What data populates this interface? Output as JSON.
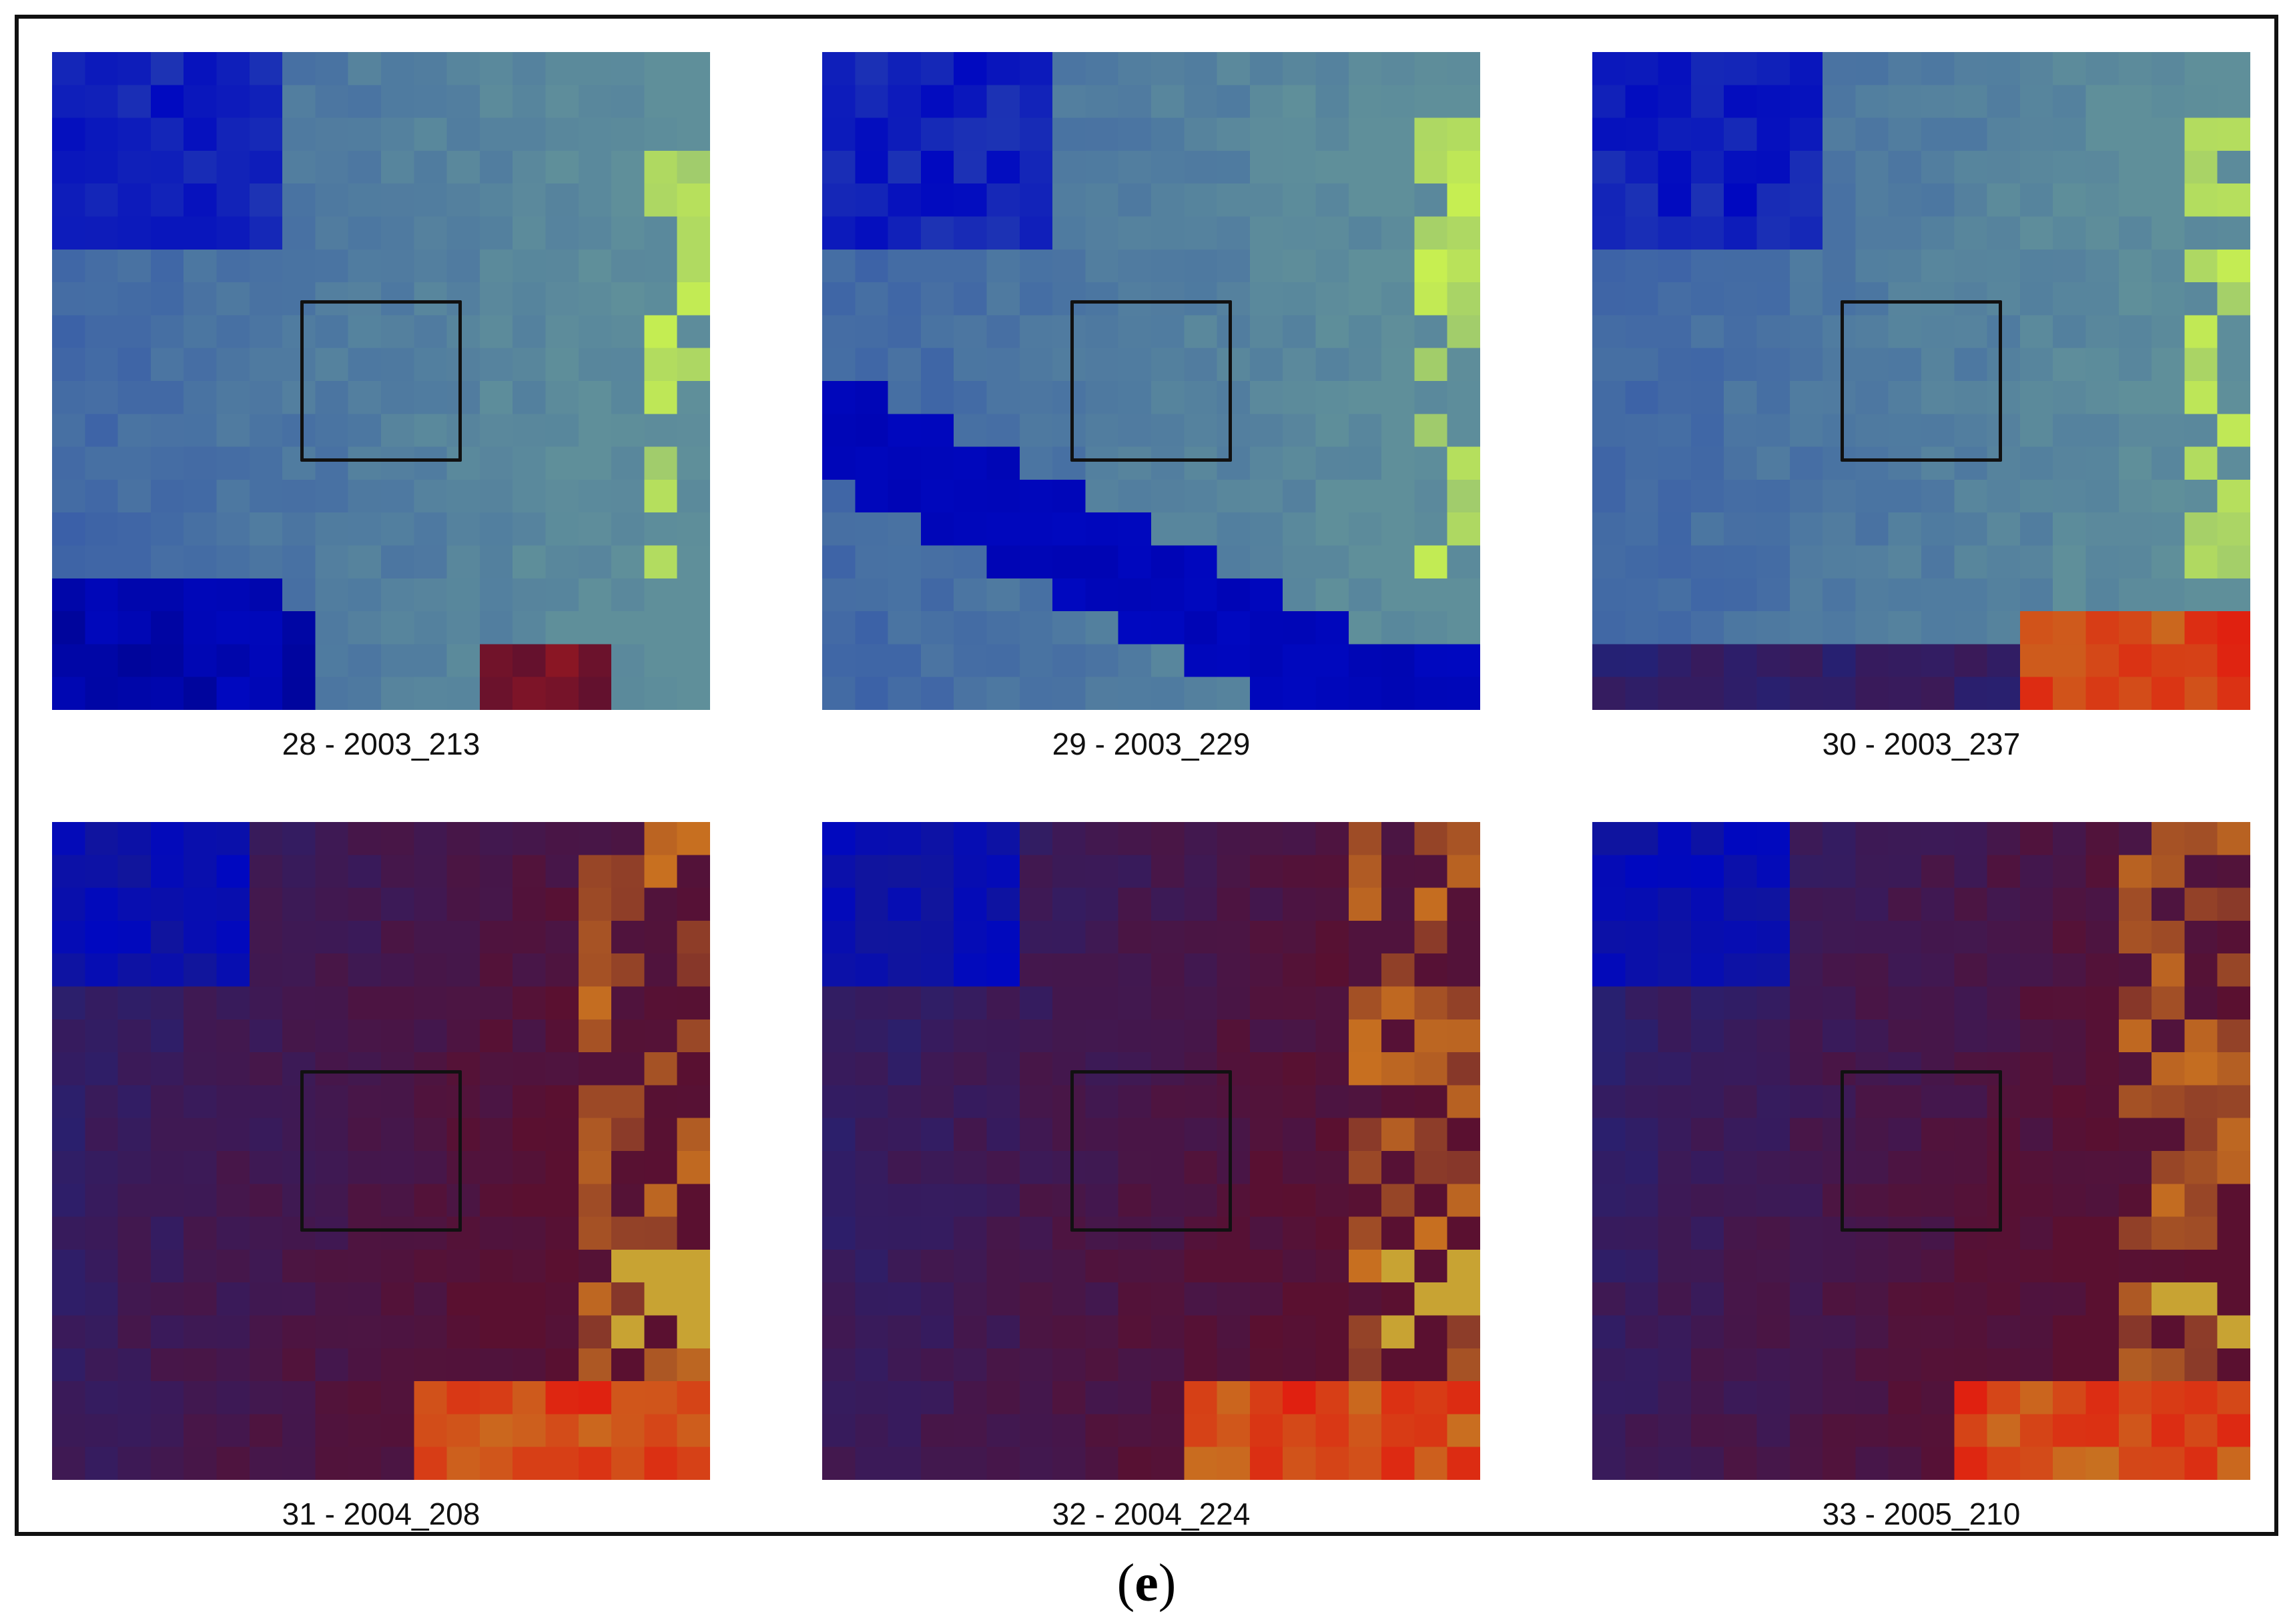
{
  "panel_label": {
    "open": "(",
    "letter": "e",
    "close": ")"
  },
  "tiles": [
    {
      "caption": "28 - 2003_213",
      "palette": "blue"
    },
    {
      "caption": "29 - 2003_229",
      "palette": "blue-river"
    },
    {
      "caption": "30 - 2003_237",
      "palette": "blue-red"
    },
    {
      "caption": "31 - 2004_208",
      "palette": "purple-red"
    },
    {
      "caption": "32 - 2004_224",
      "palette": "purple-red"
    },
    {
      "caption": "33 - 2005_210",
      "palette": "purple-red"
    }
  ],
  "colors": {
    "frame": "#111111",
    "roi_box": "#111111",
    "deep_blue": "#0008c0",
    "steel_blue": "#3a5fa8",
    "teal": "#5f8f9a",
    "yellow_green": "#c8f050",
    "maroon": "#5a1030",
    "red": "#e02010",
    "orange": "#c87020"
  }
}
